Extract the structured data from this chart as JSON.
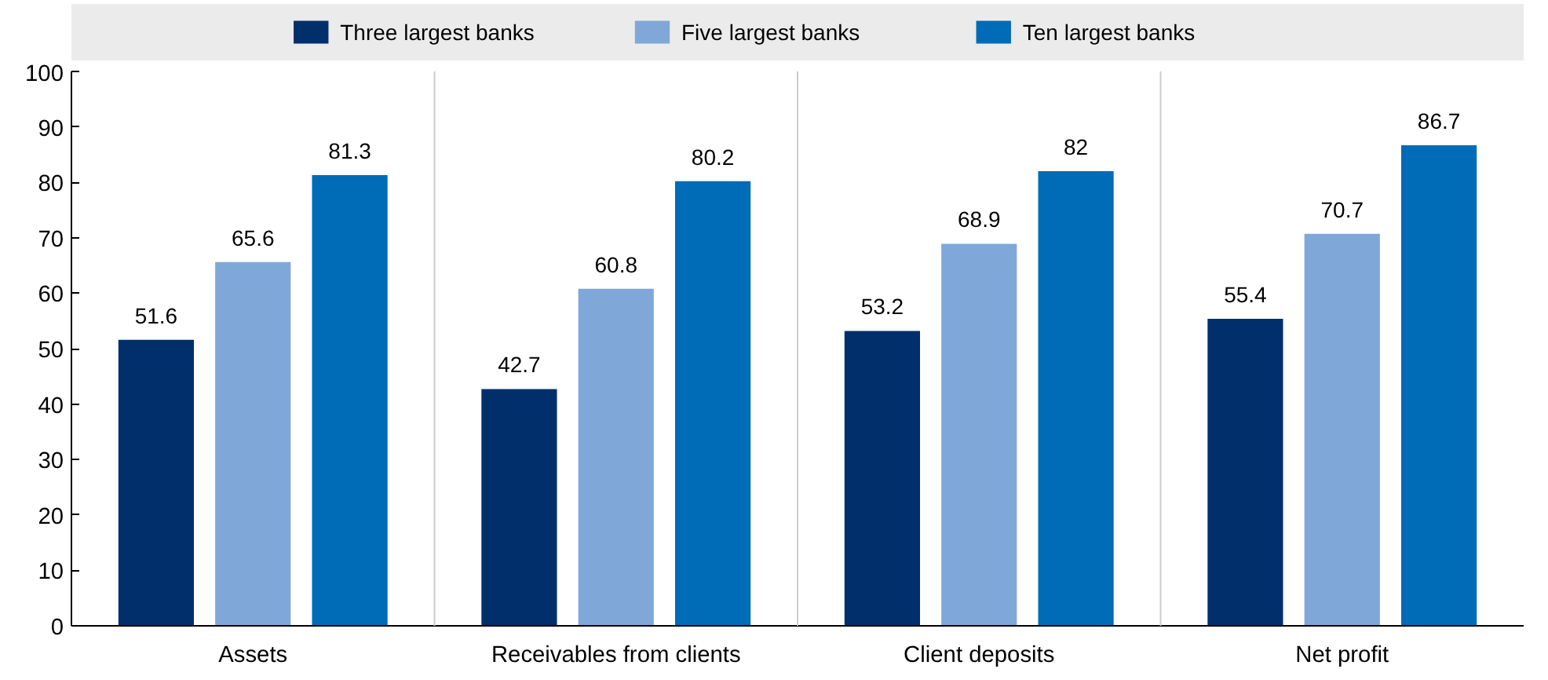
{
  "chart_data": {
    "type": "bar",
    "categories": [
      "Assets",
      "Receivables from clients",
      "Client deposits",
      "Net profit"
    ],
    "series": [
      {
        "name": "Three largest banks",
        "color": "#002f6c",
        "values": [
          51.6,
          42.7,
          53.2,
          55.4
        ]
      },
      {
        "name": "Five largest banks",
        "color": "#7fa8d9",
        "values": [
          65.6,
          60.8,
          68.9,
          70.7
        ]
      },
      {
        "name": "Ten largest banks",
        "color": "#006bb6",
        "values": [
          81.3,
          80.2,
          82,
          86.7
        ]
      }
    ],
    "ylim": [
      0,
      100
    ],
    "yticks": [
      0,
      10,
      20,
      30,
      40,
      50,
      60,
      70,
      80,
      90,
      100
    ],
    "data_labels": true,
    "legend": "top",
    "grid": "x"
  }
}
